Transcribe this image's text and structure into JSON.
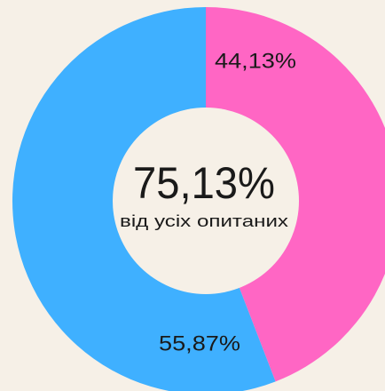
{
  "chart_data": {
    "type": "donut",
    "categories": [
      null,
      null
    ],
    "values": [
      44.13,
      55.87
    ],
    "value_labels": [
      "44,13%",
      "55,87%"
    ],
    "colors": [
      "#ff66c4",
      "#3fb0ff"
    ],
    "center_label": "75,13%",
    "center_sublabel": "від усіх опитаних"
  }
}
